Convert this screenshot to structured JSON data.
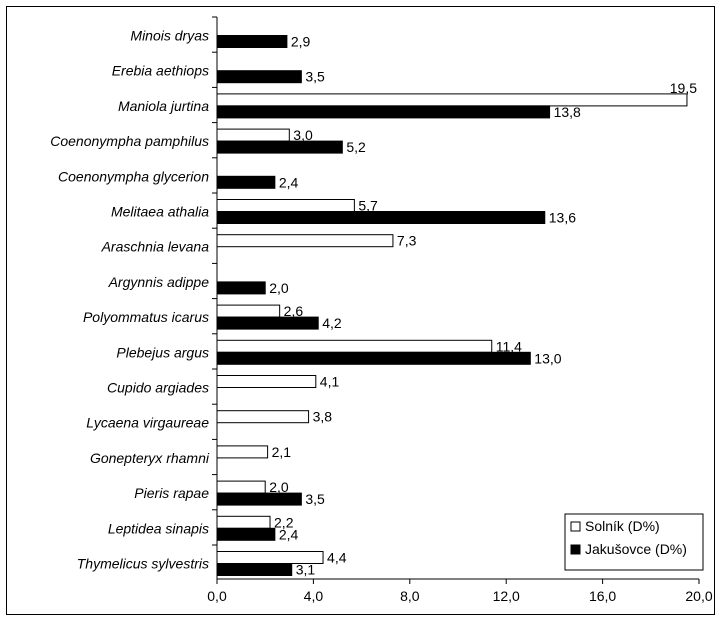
{
  "chart_data": {
    "type": "bar",
    "orientation": "horizontal",
    "categories": [
      "Minois dryas",
      "Erebia aethiops",
      "Maniola jurtina",
      "Coenonympha pamphilus",
      "Coenonympha glycerion",
      "Melitaea athalia",
      "Araschnia levana",
      "Argynnis adippe",
      "Polyommatus icarus",
      "Plebejus argus",
      "Cupido argiades",
      "Lycaena virgaureae",
      "Gonepteryx rhamni",
      "Pieris rapae",
      "Leptidea sinapis",
      "Thymelicus sylvestris"
    ],
    "series": [
      {
        "name": "Solník (D%)",
        "color": "#ffffff",
        "values": [
          null,
          null,
          19.5,
          3.0,
          null,
          5.7,
          7.3,
          null,
          2.6,
          11.4,
          4.1,
          3.8,
          2.1,
          2.0,
          2.2,
          4.4
        ],
        "labels": [
          "",
          "",
          "19,5",
          "3,0",
          "",
          "5,7",
          "7,3",
          "",
          "2,6",
          "11,4",
          "4,1",
          "3,8",
          "2,1",
          "2,0",
          "2,2",
          "4,4"
        ]
      },
      {
        "name": "Jakušovce (D%)",
        "color": "#000000",
        "values": [
          2.9,
          3.5,
          13.8,
          5.2,
          2.4,
          13.6,
          null,
          2.0,
          4.2,
          13.0,
          null,
          null,
          null,
          3.5,
          2.4,
          3.1
        ],
        "labels": [
          "2,9",
          "3,5",
          "13,8",
          "5,2",
          "2,4",
          "13,6",
          "",
          "2,0",
          "4,2",
          "13,0",
          "",
          "",
          "",
          "3,5",
          "2,4",
          "3,1"
        ]
      }
    ],
    "xlim": [
      0,
      20
    ],
    "xticks": [
      0,
      4,
      8,
      12,
      16,
      20
    ],
    "xtick_labels": [
      "0,0",
      "4,0",
      "8,0",
      "12,0",
      "16,0",
      "20,0"
    ],
    "legend_position": "bottom-right",
    "grid": false
  }
}
